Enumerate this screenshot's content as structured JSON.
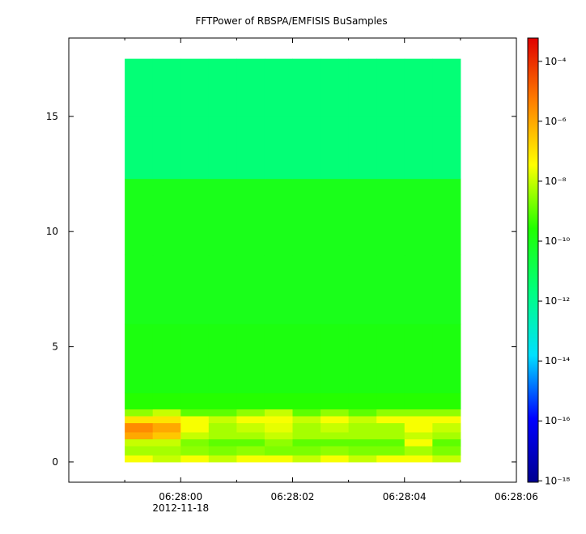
{
  "chart_data": {
    "type": "spectrogram",
    "title": "FFTPower of RBSPA/EMFISIS  BuSamples",
    "date_label": "2012-11-18",
    "xlim": [
      "06:27:58",
      "06:28:06"
    ],
    "xticks": [
      "06:28:00",
      "06:28:02",
      "06:28:04",
      "06:28:06"
    ],
    "xminorticks": [
      "06:27:59",
      "06:28:01",
      "06:28:03",
      "06:28:05"
    ],
    "ylim": [
      -0.88,
      18.4
    ],
    "yticks": [
      0,
      5,
      10,
      15
    ],
    "x_edges": [
      "06:27:59",
      "06:27:59.5",
      "06:28:00",
      "06:28:00.5",
      "06:28:01",
      "06:28:01.5",
      "06:28:02",
      "06:28:02.5",
      "06:28:03",
      "06:28:03.5",
      "06:28:04",
      "06:28:04.5",
      "06:28:05"
    ],
    "y_edges": [
      0,
      0.3,
      0.7,
      1.0,
      1.3,
      1.7,
      2.0,
      2.3,
      3,
      6,
      9,
      12.3,
      15,
      17.5
    ],
    "values": [
      [
        3e-08,
        1e-08,
        3e-08,
        1e-08,
        3e-08,
        3e-08,
        1e-08,
        3e-08,
        1e-08,
        3e-08,
        3e-08,
        1e-08
      ],
      [
        5e-09,
        5e-09,
        3e-09,
        2e-09,
        3e-09,
        2e-09,
        2e-09,
        3e-09,
        2e-09,
        2e-09,
        5e-09,
        2e-09
      ],
      [
        1e-08,
        1e-08,
        2e-09,
        1e-09,
        1e-09,
        3e-09,
        1e-09,
        1e-09,
        1e-09,
        1e-09,
        3e-08,
        1e-09
      ],
      [
        1e-06,
        3e-07,
        1e-08,
        5e-09,
        5e-09,
        1e-08,
        5e-09,
        5e-09,
        5e-09,
        5e-09,
        1e-08,
        5e-09
      ],
      [
        3e-06,
        1e-06,
        3e-08,
        5e-09,
        1e-08,
        2e-08,
        5e-09,
        1e-08,
        5e-09,
        5e-09,
        3e-08,
        1e-08
      ],
      [
        1e-07,
        1e-07,
        3e-08,
        1e-08,
        3e-08,
        3e-08,
        1e-08,
        3e-08,
        1e-08,
        3e-08,
        3e-08,
        3e-08
      ],
      [
        3e-09,
        1e-08,
        1e-09,
        1e-09,
        3e-09,
        1e-08,
        1e-09,
        3e-09,
        1e-09,
        3e-09,
        3e-09,
        3e-09
      ],
      [
        3e-10,
        3e-10,
        3e-10,
        3e-10,
        3e-10,
        3e-10,
        3e-10,
        3e-10,
        3e-10,
        3e-10,
        3e-10,
        3e-10
      ],
      [
        1.5e-10,
        1.5e-10,
        1.5e-10,
        1.5e-10,
        1.5e-10,
        1.5e-10,
        1.5e-10,
        1.5e-10,
        1.5e-10,
        1.5e-10,
        1.5e-10,
        1.5e-10
      ],
      [
        1e-10,
        1e-10,
        1e-10,
        1e-10,
        1e-10,
        1e-10,
        1e-10,
        1e-10,
        1e-10,
        1e-10,
        1e-10,
        1e-10
      ],
      [
        1e-10,
        1e-10,
        1e-10,
        1e-10,
        1e-10,
        1e-10,
        1e-10,
        1e-10,
        1e-10,
        1e-10,
        1e-10,
        1e-10
      ],
      [
        3e-12,
        3e-12,
        3e-12,
        3e-12,
        3e-12,
        3e-12,
        3e-12,
        3e-12,
        3e-12,
        3e-12,
        3e-12,
        3e-12
      ],
      [
        3e-12,
        3e-12,
        3e-12,
        3e-12,
        3e-12,
        3e-12,
        3e-12,
        3e-12,
        3e-12,
        3e-12,
        3e-12,
        3e-12
      ]
    ],
    "zlim": [
      9e-19,
      0.0006
    ],
    "zlog": true,
    "zticks": [
      {
        "value": 0.0001,
        "label": "10⁻⁴"
      },
      {
        "value": 1e-06,
        "label": "10⁻⁶"
      },
      {
        "value": 1e-08,
        "label": "10⁻⁸"
      },
      {
        "value": 1e-10,
        "label": "10⁻¹⁰"
      },
      {
        "value": 1e-12,
        "label": "10⁻¹²"
      },
      {
        "value": 1e-14,
        "label": "10⁻¹⁴"
      },
      {
        "value": 1e-16,
        "label": "10⁻¹⁶"
      },
      {
        "value": 1e-18,
        "label": "10⁻¹⁸"
      }
    ],
    "colorscale": [
      "#00008f",
      "#0000ff",
      "#00e0ff",
      "#00ff80",
      "#20ff00",
      "#ffff00",
      "#ff8000",
      "#e00000"
    ]
  }
}
